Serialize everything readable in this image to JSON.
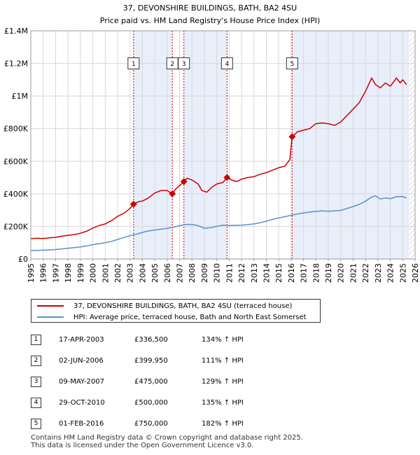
{
  "chart_data": {
    "type": "line",
    "title": "37, DEVONSHIRE BUILDINGS, BATH, BA2 4SU",
    "subtitle": "Price paid vs. HM Land Registry's House Price Index (HPI)",
    "xlim": [
      1995,
      2026
    ],
    "ylim": [
      0,
      1400000
    ],
    "x_ticks": [
      1995,
      1996,
      1997,
      1998,
      1999,
      2000,
      2001,
      2002,
      2003,
      2004,
      2005,
      2006,
      2007,
      2008,
      2009,
      2010,
      2011,
      2012,
      2013,
      2014,
      2015,
      2016,
      2017,
      2018,
      2019,
      2020,
      2021,
      2022,
      2023,
      2024,
      2025,
      2026
    ],
    "y_ticks": [
      {
        "value": 0,
        "label": "£0"
      },
      {
        "value": 200000,
        "label": "£200K"
      },
      {
        "value": 400000,
        "label": "£400K"
      },
      {
        "value": 600000,
        "label": "£600K"
      },
      {
        "value": 800000,
        "label": "£800K"
      },
      {
        "value": 1000000,
        "label": "£1M"
      },
      {
        "value": 1200000,
        "label": "£1.2M"
      },
      {
        "value": 1400000,
        "label": "£1.4M"
      }
    ],
    "hatch_after": 2025.5,
    "series": [
      {
        "name": "37, DEVONSHIRE BUILDINGS, BATH, BA2 4SU (terraced house)",
        "color": "#cc0000",
        "points": [
          [
            1995.0,
            125000
          ],
          [
            1995.5,
            127000
          ],
          [
            1996.0,
            126000
          ],
          [
            1996.5,
            130000
          ],
          [
            1997.0,
            133000
          ],
          [
            1997.5,
            140000
          ],
          [
            1998.0,
            145000
          ],
          [
            1998.5,
            150000
          ],
          [
            1999.0,
            158000
          ],
          [
            1999.5,
            170000
          ],
          [
            2000.0,
            190000
          ],
          [
            2000.5,
            205000
          ],
          [
            2001.0,
            215000
          ],
          [
            2001.5,
            235000
          ],
          [
            2002.0,
            262000
          ],
          [
            2002.5,
            280000
          ],
          [
            2003.0,
            310000
          ],
          [
            2003.29,
            336500
          ],
          [
            2003.7,
            352000
          ],
          [
            2004.0,
            355000
          ],
          [
            2004.5,
            375000
          ],
          [
            2005.0,
            405000
          ],
          [
            2005.5,
            420000
          ],
          [
            2006.0,
            420000
          ],
          [
            2006.42,
            399950
          ],
          [
            2006.7,
            430000
          ],
          [
            2007.0,
            450000
          ],
          [
            2007.35,
            475000
          ],
          [
            2007.6,
            495000
          ],
          [
            2008.0,
            485000
          ],
          [
            2008.5,
            460000
          ],
          [
            2008.8,
            420000
          ],
          [
            2009.2,
            410000
          ],
          [
            2009.6,
            440000
          ],
          [
            2010.0,
            460000
          ],
          [
            2010.5,
            470000
          ],
          [
            2010.83,
            500000
          ],
          [
            2011.2,
            485000
          ],
          [
            2011.6,
            475000
          ],
          [
            2012.0,
            490000
          ],
          [
            2012.5,
            500000
          ],
          [
            2013.0,
            505000
          ],
          [
            2013.5,
            520000
          ],
          [
            2014.0,
            530000
          ],
          [
            2014.5,
            545000
          ],
          [
            2015.0,
            560000
          ],
          [
            2015.5,
            570000
          ],
          [
            2015.9,
            610000
          ],
          [
            2016.08,
            750000
          ],
          [
            2016.5,
            780000
          ],
          [
            2017.0,
            790000
          ],
          [
            2017.5,
            800000
          ],
          [
            2018.0,
            830000
          ],
          [
            2018.5,
            835000
          ],
          [
            2019.0,
            830000
          ],
          [
            2019.5,
            820000
          ],
          [
            2020.0,
            840000
          ],
          [
            2020.5,
            880000
          ],
          [
            2021.0,
            920000
          ],
          [
            2021.5,
            960000
          ],
          [
            2022.0,
            1030000
          ],
          [
            2022.5,
            1110000
          ],
          [
            2022.8,
            1070000
          ],
          [
            2023.2,
            1050000
          ],
          [
            2023.6,
            1080000
          ],
          [
            2024.0,
            1060000
          ],
          [
            2024.5,
            1110000
          ],
          [
            2024.8,
            1080000
          ],
          [
            2025.0,
            1100000
          ],
          [
            2025.3,
            1070000
          ]
        ]
      },
      {
        "name": "HPI: Average price, terraced house, Bath and North East Somerset",
        "color": "#5b8fcf",
        "points": [
          [
            1995.0,
            52000
          ],
          [
            1995.5,
            53000
          ],
          [
            1996.0,
            54000
          ],
          [
            1996.5,
            56000
          ],
          [
            1997.0,
            58000
          ],
          [
            1997.5,
            62000
          ],
          [
            1998.0,
            66000
          ],
          [
            1998.5,
            70000
          ],
          [
            1999.0,
            74000
          ],
          [
            1999.5,
            80000
          ],
          [
            2000.0,
            88000
          ],
          [
            2000.5,
            94000
          ],
          [
            2001.0,
            100000
          ],
          [
            2001.5,
            108000
          ],
          [
            2002.0,
            120000
          ],
          [
            2002.5,
            132000
          ],
          [
            2003.0,
            143000
          ],
          [
            2003.5,
            152000
          ],
          [
            2004.0,
            163000
          ],
          [
            2004.5,
            172000
          ],
          [
            2005.0,
            178000
          ],
          [
            2005.5,
            183000
          ],
          [
            2006.0,
            188000
          ],
          [
            2006.5,
            195000
          ],
          [
            2007.0,
            205000
          ],
          [
            2007.5,
            212000
          ],
          [
            2008.0,
            212000
          ],
          [
            2008.5,
            205000
          ],
          [
            2009.0,
            188000
          ],
          [
            2009.5,
            192000
          ],
          [
            2010.0,
            200000
          ],
          [
            2010.5,
            208000
          ],
          [
            2011.0,
            205000
          ],
          [
            2011.5,
            207000
          ],
          [
            2012.0,
            208000
          ],
          [
            2012.5,
            211000
          ],
          [
            2013.0,
            215000
          ],
          [
            2013.5,
            222000
          ],
          [
            2014.0,
            232000
          ],
          [
            2014.5,
            243000
          ],
          [
            2015.0,
            252000
          ],
          [
            2015.5,
            260000
          ],
          [
            2016.0,
            268000
          ],
          [
            2016.5,
            276000
          ],
          [
            2017.0,
            282000
          ],
          [
            2017.5,
            288000
          ],
          [
            2018.0,
            292000
          ],
          [
            2018.5,
            295000
          ],
          [
            2019.0,
            293000
          ],
          [
            2019.5,
            295000
          ],
          [
            2020.0,
            298000
          ],
          [
            2020.5,
            310000
          ],
          [
            2021.0,
            322000
          ],
          [
            2021.5,
            335000
          ],
          [
            2022.0,
            355000
          ],
          [
            2022.5,
            380000
          ],
          [
            2022.8,
            388000
          ],
          [
            2023.2,
            368000
          ],
          [
            2023.6,
            375000
          ],
          [
            2024.0,
            370000
          ],
          [
            2024.5,
            382000
          ],
          [
            2025.0,
            383000
          ],
          [
            2025.3,
            375000
          ]
        ]
      }
    ],
    "sales": [
      {
        "num": "1",
        "date": "17-APR-2003",
        "price": "£336,500",
        "hpi": "134% ↑ HPI",
        "x": 2003.29,
        "value": 336500
      },
      {
        "num": "2",
        "date": "02-JUN-2006",
        "price": "£399,950",
        "hpi": "111% ↑ HPI",
        "x": 2006.42,
        "value": 399950
      },
      {
        "num": "3",
        "date": "09-MAY-2007",
        "price": "£475,000",
        "hpi": "129% ↑ HPI",
        "x": 2007.35,
        "value": 475000
      },
      {
        "num": "4",
        "date": "29-OCT-2010",
        "price": "£500,000",
        "hpi": "135% ↑ HPI",
        "x": 2010.83,
        "value": 500000
      },
      {
        "num": "5",
        "date": "01-FEB-2016",
        "price": "£750,000",
        "hpi": "182% ↑ HPI",
        "x": 2016.08,
        "value": 750000
      }
    ],
    "marker_label_value": 1200000
  },
  "legend": {
    "red_label": "37, DEVONSHIRE BUILDINGS, BATH, BA2 4SU (terraced house)",
    "blue_label": "HPI: Average price, terraced house, Bath and North East Somerset"
  },
  "footer": {
    "line1": "Contains HM Land Registry data © Crown copyright and database right 2025.",
    "line2": "This data is licensed under the Open Government Licence v3.0."
  },
  "colors": {
    "red": "#cc0000",
    "blue": "#5b8fcf",
    "shade": "#e8eefa",
    "grid": "#d8d8d8"
  }
}
